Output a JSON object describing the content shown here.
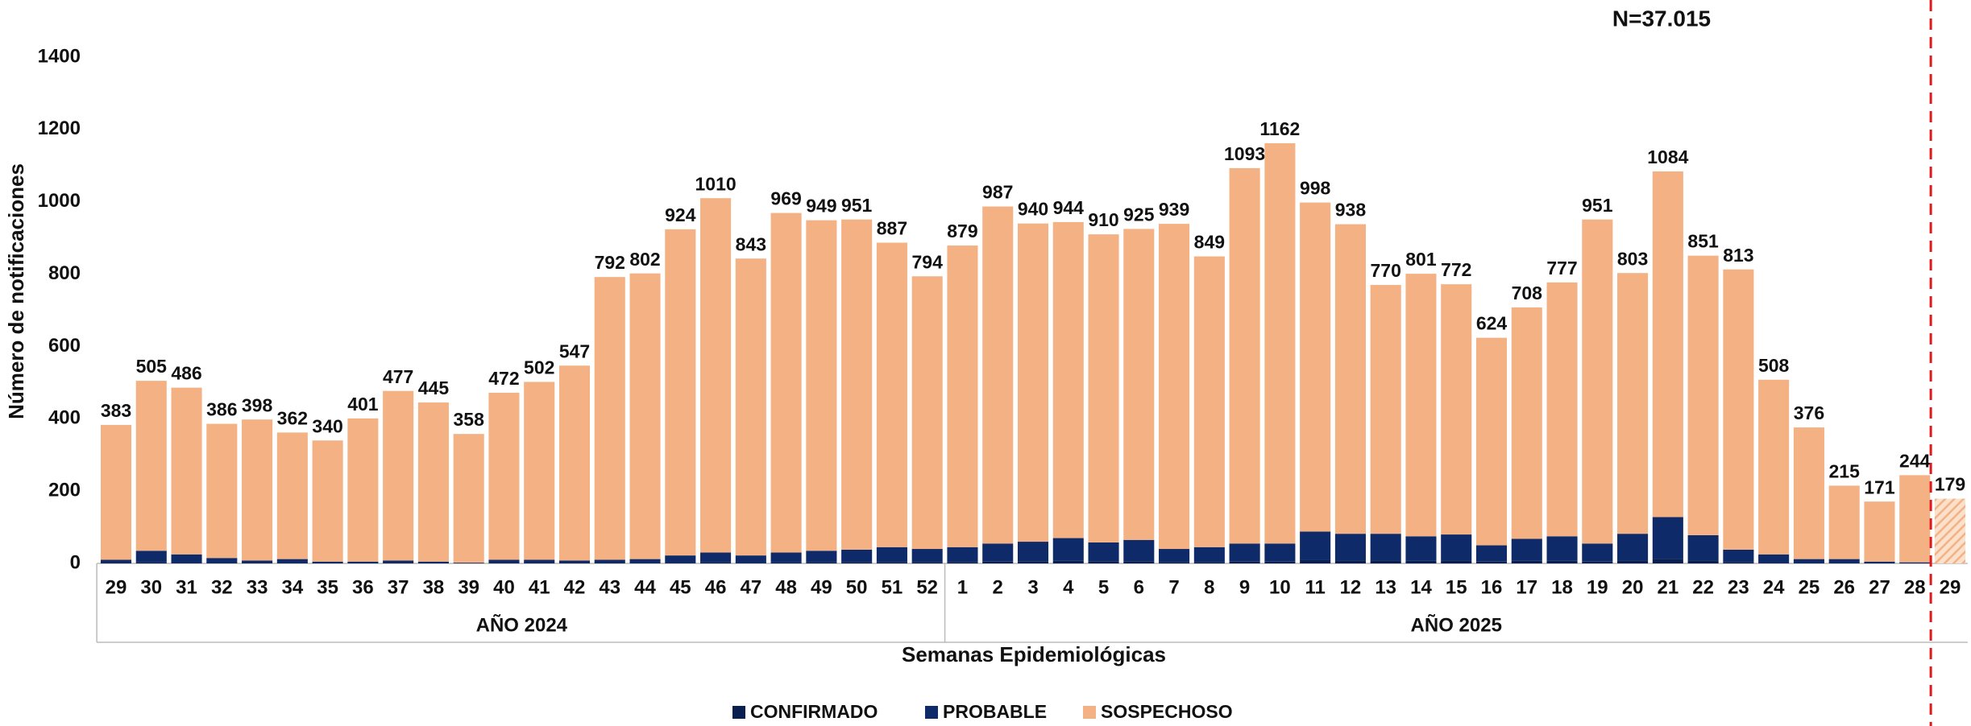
{
  "chart_data": {
    "type": "stacked_bar",
    "annotation": "N=37.015",
    "y_label": "Número de notificaciones",
    "x_label": "Semanas Epidemiológicas",
    "categories": [
      "29",
      "30",
      "31",
      "32",
      "33",
      "34",
      "35",
      "36",
      "37",
      "38",
      "39",
      "40",
      "41",
      "42",
      "43",
      "44",
      "45",
      "46",
      "47",
      "48",
      "49",
      "50",
      "51",
      "52",
      "1",
      "2",
      "3",
      "4",
      "5",
      "6",
      "7",
      "8",
      "9",
      "10",
      "11",
      "12",
      "13",
      "14",
      "15",
      "16",
      "17",
      "18",
      "19",
      "20",
      "21",
      "22",
      "23",
      "24",
      "25",
      "26",
      "27",
      "28",
      "29"
    ],
    "groups": [
      {
        "label": "AÑO 2024",
        "span": 24
      },
      {
        "label": "AÑO 2025",
        "span": 29
      }
    ],
    "series": [
      {
        "name": "CONFIRMADO",
        "color": "#0a1f4f",
        "values": [
          1,
          3,
          2,
          1,
          1,
          1,
          0,
          0,
          1,
          0,
          0,
          1,
          1,
          1,
          1,
          1,
          2,
          3,
          2,
          3,
          3,
          4,
          4,
          4,
          4,
          5,
          6,
          7,
          6,
          6,
          4,
          4,
          5,
          5,
          9,
          8,
          8,
          7,
          8,
          5,
          7,
          7,
          5,
          8,
          13,
          8,
          4,
          2,
          1,
          1,
          0,
          0,
          0
        ]
      },
      {
        "name": "PROBABLE",
        "color": "#0f2a68",
        "values": [
          9,
          32,
          23,
          14,
          7,
          11,
          5,
          5,
          7,
          5,
          2,
          9,
          9,
          7,
          9,
          11,
          20,
          27,
          20,
          27,
          32,
          34,
          41,
          36,
          41,
          50,
          54,
          63,
          52,
          59,
          36,
          41,
          50,
          50,
          79,
          74,
          74,
          68,
          72,
          45,
          61,
          68,
          50,
          74,
          115,
          70,
          34,
          23,
          11,
          11,
          5,
          3,
          0
        ]
      },
      {
        "name": "SOSPECHOSO",
        "color": "#f4b183",
        "values": [
          373,
          470,
          461,
          371,
          390,
          350,
          335,
          396,
          469,
          440,
          356,
          462,
          492,
          539,
          782,
          790,
          902,
          980,
          821,
          939,
          914,
          913,
          842,
          754,
          834,
          932,
          880,
          874,
          852,
          860,
          899,
          804,
          1038,
          1107,
          910,
          856,
          688,
          726,
          692,
          574,
          640,
          702,
          896,
          721,
          956,
          773,
          775,
          483,
          364,
          203,
          166,
          241,
          179
        ]
      }
    ],
    "totals": [
      383,
      505,
      486,
      386,
      398,
      362,
      340,
      401,
      477,
      445,
      358,
      472,
      502,
      547,
      792,
      802,
      924,
      1010,
      843,
      969,
      949,
      951,
      887,
      794,
      879,
      987,
      940,
      944,
      910,
      925,
      939,
      849,
      1093,
      1162,
      998,
      938,
      770,
      801,
      772,
      624,
      708,
      777,
      951,
      803,
      1084,
      851,
      813,
      508,
      376,
      215,
      171,
      244,
      179
    ],
    "hatched": [
      52
    ],
    "ylim": [
      0,
      1400
    ],
    "yticks": [
      0,
      200,
      400,
      600,
      800,
      1000,
      1200,
      1400
    ],
    "grid": false,
    "legend": "bottom"
  }
}
